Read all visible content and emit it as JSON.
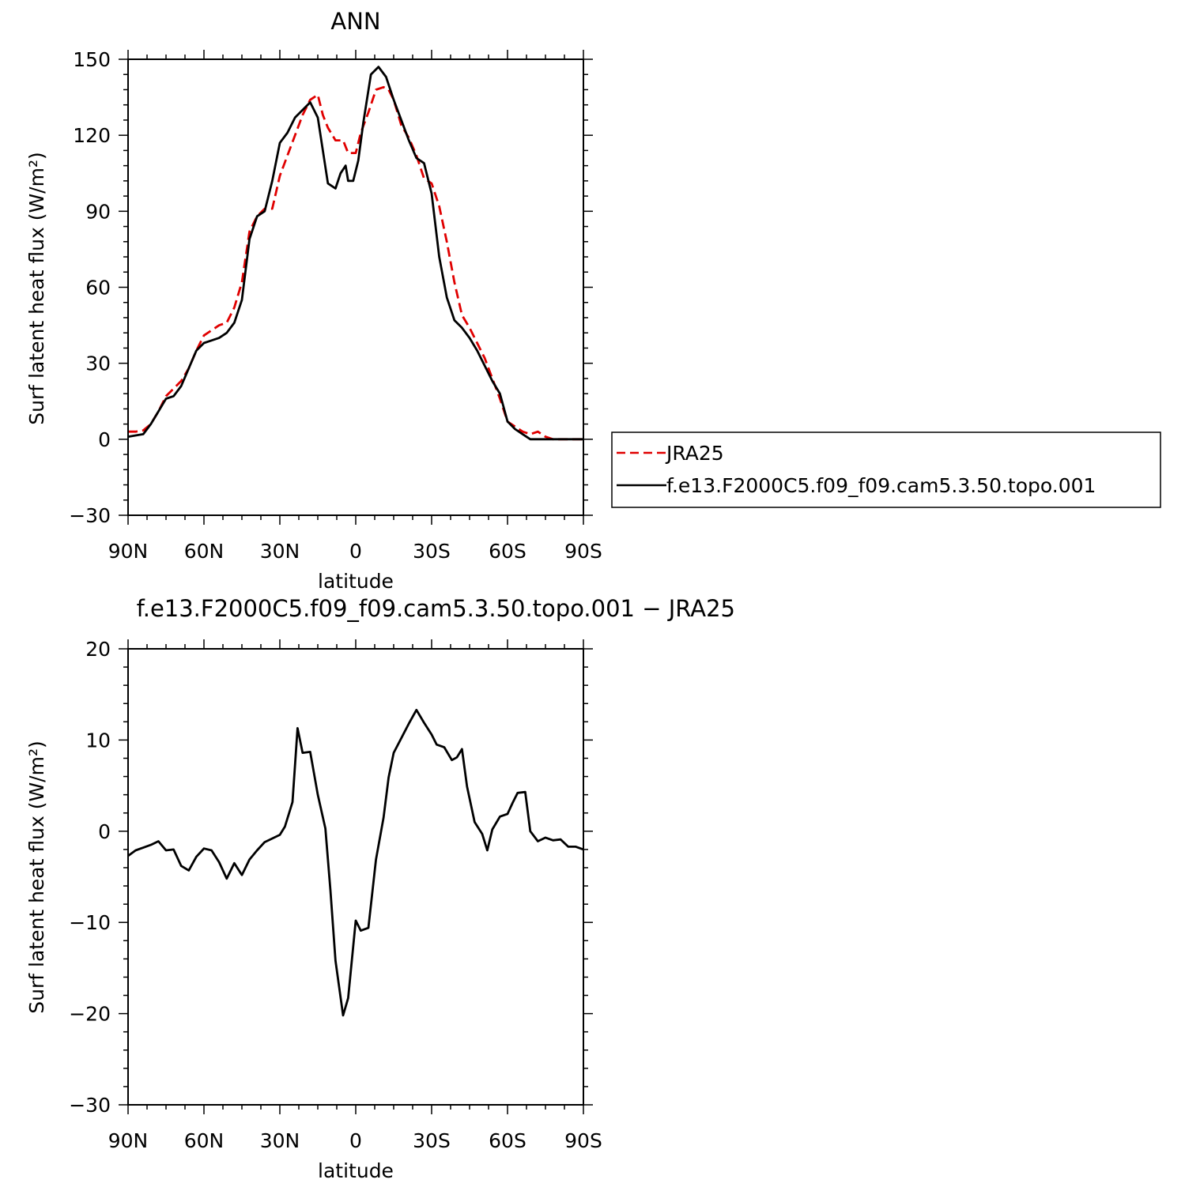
{
  "chart_data": [
    {
      "type": "line",
      "title": "ANN",
      "xlabel": "latitude",
      "ylabel": "Surf latent heat flux (W/m²)",
      "xlim": [
        -90,
        90
      ],
      "ylim": [
        -30,
        150
      ],
      "xticks": [
        -90,
        -60,
        -30,
        0,
        30,
        60,
        90
      ],
      "xtick_labels": [
        "90N",
        "60N",
        "30N",
        "0",
        "30S",
        "60S",
        "90S"
      ],
      "yticks": [
        -30,
        0,
        30,
        60,
        90,
        120,
        150
      ],
      "ytick_labels": [
        "−30",
        "0",
        "30",
        "60",
        "90",
        "120",
        "150"
      ],
      "legend": {
        "placement": "right",
        "entries": [
          "JRA25",
          "f.e13.F2000C5.f09_f09.cam5.3.50.topo.001"
        ]
      },
      "series": [
        {
          "name": "JRA25",
          "color": "#e00000",
          "dash": "dashed",
          "x": [
            -90,
            -87,
            -84,
            -81,
            -78,
            -75,
            -72,
            -69,
            -66,
            -63,
            -60,
            -57,
            -54,
            -51,
            -48,
            -45,
            -42,
            -39,
            -36,
            -33,
            -30,
            -27,
            -24,
            -21,
            -18,
            -15,
            -13,
            -11,
            -8,
            -5,
            -3,
            0,
            2,
            5,
            8,
            11,
            13,
            15,
            18,
            21,
            24,
            27,
            30,
            33,
            36,
            39,
            42,
            45,
            48,
            51,
            54,
            57,
            60,
            63,
            66,
            69,
            72,
            75,
            78,
            81,
            84,
            87,
            90
          ],
          "y": [
            3,
            3,
            3.5,
            6,
            11,
            17,
            20,
            23,
            28,
            35,
            41,
            43,
            45,
            46,
            52,
            62,
            82,
            88,
            91,
            91,
            104,
            112,
            120,
            128,
            134,
            136,
            128,
            123,
            118,
            118,
            113,
            113,
            121,
            129,
            138,
            139,
            138,
            134,
            124,
            119,
            112,
            103,
            101,
            92,
            78,
            62,
            49,
            44,
            38,
            32,
            24,
            16,
            7,
            5,
            3,
            2,
            3,
            1,
            0,
            0,
            0,
            0,
            0
          ]
        },
        {
          "name": "f.e13.F2000C5.f09_f09.cam5.3.50.topo.001",
          "color": "#000000",
          "dash": "solid",
          "x": [
            -90,
            -87,
            -84,
            -81,
            -78,
            -75,
            -72,
            -69,
            -66,
            -63,
            -60,
            -57,
            -54,
            -51,
            -48,
            -45,
            -42,
            -39,
            -36,
            -33,
            -30,
            -27,
            -24,
            -21,
            -18,
            -15,
            -13,
            -11,
            -8,
            -6,
            -4,
            -3,
            -1,
            1,
            3,
            6,
            9,
            12,
            15,
            18,
            21,
            24,
            27,
            30,
            33,
            36,
            39,
            42,
            45,
            48,
            51,
            54,
            57,
            60,
            63,
            66,
            69,
            72,
            75,
            78,
            81,
            84,
            87,
            90
          ],
          "y": [
            1,
            1.5,
            2,
            6,
            11,
            16,
            17,
            21,
            28,
            35,
            38,
            39,
            40,
            42,
            46,
            55,
            79,
            88,
            90,
            102,
            117,
            121,
            127,
            130,
            133,
            127,
            114,
            101,
            99,
            105,
            108,
            102,
            102,
            110,
            125,
            144,
            147,
            143,
            134,
            126,
            118,
            111,
            109,
            97,
            72,
            56,
            47,
            44,
            40,
            35,
            29,
            23,
            18,
            7,
            4,
            2,
            0,
            0,
            0,
            0,
            0,
            0,
            0,
            0
          ]
        }
      ]
    },
    {
      "type": "line",
      "title": "f.e13.F2000C5.f09_f09.cam5.3.50.topo.001 − JRA25",
      "xlabel": "latitude",
      "ylabel": "Surf latent heat flux (W/m²)",
      "xlim": [
        -90,
        90
      ],
      "ylim": [
        -30,
        20
      ],
      "xticks": [
        -90,
        -60,
        -30,
        0,
        30,
        60,
        90
      ],
      "xtick_labels": [
        "90N",
        "60N",
        "30N",
        "0",
        "30S",
        "60S",
        "90S"
      ],
      "yticks": [
        -30,
        -20,
        -10,
        0,
        10,
        20
      ],
      "ytick_labels": [
        "−30",
        "−20",
        "−10",
        "0",
        "10",
        "20"
      ],
      "series": [
        {
          "color": "#000000",
          "dash": "solid",
          "x": [
            -90,
            -87,
            -84,
            -81,
            -78,
            -75,
            -72,
            -69,
            -66,
            -63,
            -60,
            -57,
            -54,
            -51,
            -48,
            -45,
            -42,
            -39,
            -36,
            -33,
            -30,
            -28,
            -25,
            -23,
            -21,
            -18,
            -15,
            -12,
            -10,
            -8,
            -5,
            -3,
            0,
            2,
            5,
            8,
            11,
            13,
            15,
            18,
            21,
            24,
            27,
            30,
            32,
            35,
            38,
            40,
            42,
            44,
            47,
            50,
            52,
            54,
            57,
            60,
            62,
            64,
            67,
            69,
            72,
            75,
            78,
            81,
            84,
            87,
            90
          ],
          "y": [
            -2.7,
            -2.1,
            -1.8,
            -1.5,
            -1.1,
            -2.1,
            -2.0,
            -3.8,
            -4.3,
            -2.8,
            -1.9,
            -2.1,
            -3.4,
            -5.2,
            -3.5,
            -4.8,
            -3.1,
            -2.1,
            -1.2,
            -0.8,
            -0.4,
            0.5,
            3.2,
            11.3,
            8.6,
            8.7,
            4.0,
            0.3,
            -6.5,
            -14.2,
            -20.2,
            -18.3,
            -9.8,
            -10.9,
            -10.6,
            -3.1,
            1.5,
            5.9,
            8.6,
            10.2,
            11.8,
            13.3,
            11.9,
            10.6,
            9.5,
            9.2,
            7.8,
            8.1,
            9.0,
            4.9,
            1.0,
            -0.3,
            -2.1,
            0.2,
            1.6,
            1.9,
            3.1,
            4.2,
            4.3,
            0.0,
            -1.1,
            -0.7,
            -1.0,
            -0.9,
            -1.7,
            -1.7,
            -2.0
          ]
        }
      ]
    }
  ]
}
